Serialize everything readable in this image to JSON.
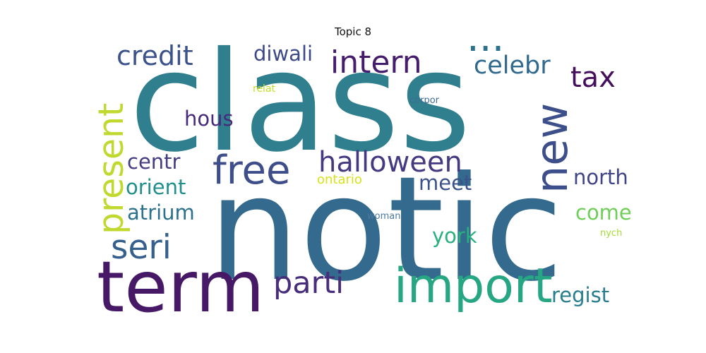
{
  "title": "Topic 8",
  "words": {
    "class": {
      "text": "class",
      "color": "#2f7f8e"
    },
    "notic": {
      "text": "notic",
      "color": "#336a8d"
    },
    "term": {
      "text": "term",
      "color": "#461865"
    },
    "import": {
      "text": "import",
      "color": "#27a683"
    },
    "new": {
      "text": "new",
      "color": "#3d4f8a"
    },
    "present": {
      "text": "present",
      "color": "#c1d92f"
    },
    "free": {
      "text": "free",
      "color": "#3e4e8a"
    },
    "halloween": {
      "text": "halloween",
      "color": "#443a82"
    },
    "parti": {
      "text": "parti",
      "color": "#472d7b"
    },
    "seri": {
      "text": "seri",
      "color": "#355f8d"
    },
    "intern": {
      "text": "intern",
      "color": "#461d6c"
    },
    "credit": {
      "text": "credit",
      "color": "#3b528b"
    },
    "tax": {
      "text": "tax",
      "color": "#450f5c"
    },
    "celebr": {
      "text": "celebr",
      "color": "#30698e"
    },
    "ellipsis": {
      "text": "...",
      "color": "#2c728e"
    },
    "diwali": {
      "text": "diwali",
      "color": "#3d4a88"
    },
    "hous": {
      "text": "hous",
      "color": "#472a7a"
    },
    "centr": {
      "text": "centr",
      "color": "#433d84"
    },
    "orient": {
      "text": "orient",
      "color": "#21908d"
    },
    "atrium": {
      "text": "atrium",
      "color": "#2c718e"
    },
    "meet": {
      "text": "meet",
      "color": "#3b528b"
    },
    "north": {
      "text": "north",
      "color": "#414487"
    },
    "come": {
      "text": "come",
      "color": "#6ece58"
    },
    "york": {
      "text": "york",
      "color": "#2ab07f"
    },
    "regist": {
      "text": "regist",
      "color": "#287d8e"
    },
    "ontario": {
      "text": "ontario",
      "color": "#d8e219"
    },
    "relat": {
      "text": "relat",
      "color": "#c2df23"
    },
    "corpor": {
      "text": "corpor",
      "color": "#3e6c8e"
    },
    "woman": {
      "text": "woman",
      "color": "#4d79a0"
    },
    "nych": {
      "text": "nych",
      "color": "#a5db36"
    }
  }
}
